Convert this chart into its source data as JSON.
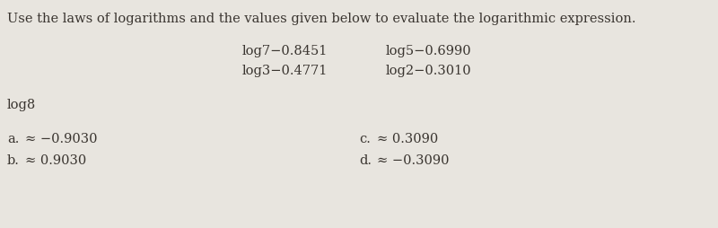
{
  "bg_color": "#e8e5df",
  "instruction": "Use the laws of logarithms and the values given below to evaluate the logarithmic expression.",
  "given_row1_left": "log7−0.8451",
  "given_row1_right": "log5−0.6990",
  "given_row2_left": "log3−0.4771",
  "given_row2_right": "log2−0.3010",
  "question": "log8",
  "choice_a_label": "a.",
  "choice_a_sym": "≈",
  "choice_a_val": "−0.9030",
  "choice_b_label": "b.",
  "choice_b_sym": "≈",
  "choice_b_val": "0.9030",
  "choice_c_label": "c.",
  "choice_c_sym": "≈",
  "choice_c_val": "0.3090",
  "choice_d_label": "d.",
  "choice_d_sym": "≈",
  "choice_d_val": "−0.3090",
  "font_size_instruction": 10.5,
  "font_size_values": 10.5,
  "font_size_question": 10.5,
  "font_size_choices": 10.5,
  "text_color": "#3a3530"
}
